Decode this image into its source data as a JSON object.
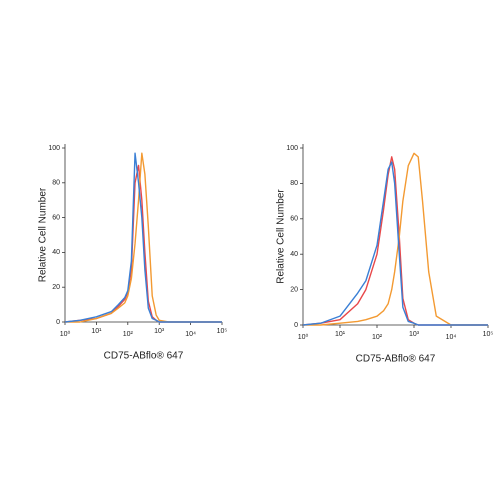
{
  "chart_data": [
    {
      "type": "line",
      "xlabel": "CD75-ABflo® 647",
      "ylabel": "Relative Cell Number",
      "xscale": "log",
      "x": [
        1,
        3,
        10,
        30,
        50,
        80,
        100,
        130,
        170,
        220,
        280,
        350,
        450,
        600,
        800,
        1000,
        2000,
        10000,
        100000
      ],
      "series": [
        {
          "color": "#e8484a",
          "values": [
            0,
            1,
            2,
            5,
            9,
            13,
            17,
            30,
            80,
            90,
            70,
            40,
            12,
            3,
            1,
            0,
            0,
            0,
            0
          ]
        },
        {
          "color": "#f39a32",
          "values": [
            0,
            0,
            2,
            5,
            8,
            11,
            15,
            25,
            45,
            70,
            97,
            85,
            55,
            15,
            4,
            1,
            0,
            0,
            0
          ]
        },
        {
          "color": "#3a7fd5",
          "values": [
            0,
            1,
            3,
            6,
            10,
            14,
            18,
            35,
            97,
            80,
            60,
            30,
            8,
            2,
            1,
            0,
            0,
            0,
            0
          ]
        }
      ],
      "xlim": [
        1,
        100000
      ],
      "ylim": [
        0,
        100
      ],
      "xticks": [
        {
          "value": 1,
          "label": "10⁰"
        },
        {
          "value": 10,
          "label": "10¹"
        },
        {
          "value": 100,
          "label": "10²"
        },
        {
          "value": 1000,
          "label": "10³"
        },
        {
          "value": 10000,
          "label": "10⁴"
        },
        {
          "value": 100000,
          "label": "10⁵"
        }
      ],
      "yticks": [
        0,
        20,
        40,
        60,
        80,
        100
      ]
    },
    {
      "type": "line",
      "xlabel": "CD75-ABflo® 647",
      "ylabel": "Relative Cell Number",
      "xscale": "log",
      "x": [
        1,
        3,
        10,
        30,
        50,
        100,
        150,
        200,
        250,
        300,
        400,
        500,
        700,
        1000,
        1300,
        1700,
        2500,
        4000,
        10000,
        100000
      ],
      "series": [
        {
          "color": "#e8484a",
          "values": [
            0,
            1,
            3,
            12,
            20,
            40,
            65,
            85,
            95,
            88,
            50,
            15,
            3,
            1,
            0,
            0,
            0,
            0,
            0,
            0
          ]
        },
        {
          "color": "#f39a32",
          "values": [
            0,
            0,
            1,
            2,
            3,
            5,
            8,
            12,
            20,
            30,
            50,
            70,
            90,
            97,
            95,
            70,
            30,
            5,
            0,
            0
          ]
        },
        {
          "color": "#3a7fd5",
          "values": [
            0,
            1,
            5,
            18,
            25,
            45,
            70,
            88,
            92,
            80,
            40,
            10,
            2,
            1,
            0,
            0,
            0,
            0,
            0,
            0
          ]
        }
      ],
      "xlim": [
        1,
        100000
      ],
      "ylim": [
        0,
        100
      ],
      "xticks": [
        {
          "value": 1,
          "label": "10⁰"
        },
        {
          "value": 10,
          "label": "10¹"
        },
        {
          "value": 100,
          "label": "10²"
        },
        {
          "value": 1000,
          "label": "10³"
        },
        {
          "value": 10000,
          "label": "10⁴"
        },
        {
          "value": 100000,
          "label": "10⁵"
        }
      ],
      "yticks": [
        0,
        20,
        40,
        60,
        80,
        100
      ]
    }
  ]
}
